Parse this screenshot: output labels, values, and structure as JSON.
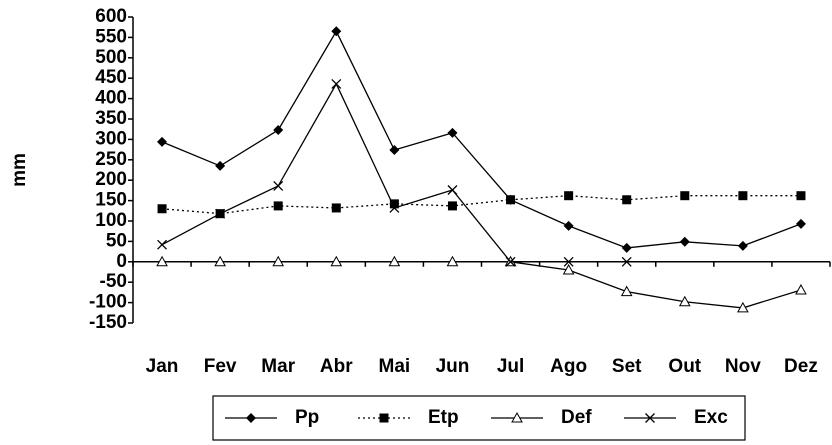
{
  "chart_data": {
    "type": "line",
    "ylabel": "mm",
    "categories": [
      "Jan",
      "Fev",
      "Mar",
      "Abr",
      "Mai",
      "Jun",
      "Jul",
      "Ago",
      "Set",
      "Out",
      "Nov",
      "Dez"
    ],
    "series": [
      {
        "name": "Pp",
        "color": "#000000",
        "marker": "diamond",
        "dash": false,
        "values": [
          294,
          235,
          323,
          565,
          274,
          316,
          152,
          88,
          34,
          49,
          39,
          93
        ]
      },
      {
        "name": "Etp",
        "color": "#000000",
        "marker": "square",
        "dash": true,
        "values": [
          130,
          118,
          137,
          132,
          142,
          137,
          152,
          162,
          152,
          162,
          162,
          162
        ]
      },
      {
        "name": "Def",
        "color": "#000000",
        "marker": "triangle",
        "dash": false,
        "values": [
          0,
          0,
          0,
          0,
          0,
          0,
          0,
          -20,
          -73,
          -98,
          -113,
          -69
        ]
      },
      {
        "name": "Exc",
        "color": "#000000",
        "marker": "cross",
        "dash": false,
        "values": [
          42,
          118,
          186,
          436,
          132,
          176,
          0,
          0,
          0,
          null,
          null,
          null
        ]
      }
    ],
    "ylim": [
      -150,
      600
    ],
    "yticks": [
      -150,
      -100,
      -50,
      0,
      50,
      100,
      150,
      200,
      250,
      300,
      350,
      400,
      450,
      500,
      550,
      600
    ],
    "grid": false,
    "legend": "bottom"
  }
}
